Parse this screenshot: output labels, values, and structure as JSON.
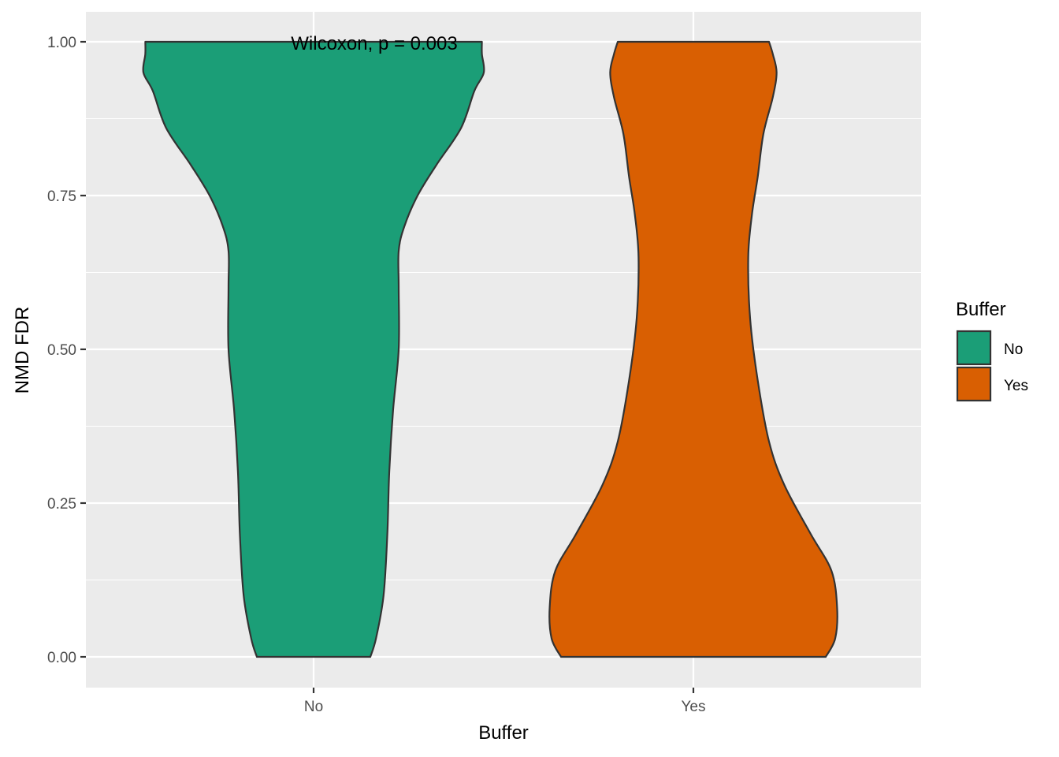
{
  "chart_data": {
    "type": "violin",
    "title": "",
    "xlabel": "Buffer",
    "ylabel": "NMD FDR",
    "ylim": [
      -0.1,
      1.05
    ],
    "yticks": [
      0.0,
      0.25,
      0.5,
      0.75,
      1.0
    ],
    "ytick_labels": [
      "0.00",
      "0.25",
      "0.50",
      "0.75",
      "1.00"
    ],
    "categories": [
      "No",
      "Yes"
    ],
    "grid": true,
    "legend": {
      "title": "Buffer",
      "position": "right",
      "items": [
        {
          "label": "No",
          "color": "#1b9e77"
        },
        {
          "label": "Yes",
          "color": "#d95f02"
        }
      ]
    },
    "annotation": "Wilcoxon, p = 0.003",
    "series": [
      {
        "category": "No",
        "color": "#1b9e77",
        "density_profile": [
          {
            "y": 0.0,
            "w": 0.3
          },
          {
            "y": 0.03,
            "w": 0.33
          },
          {
            "y": 0.1,
            "w": 0.37
          },
          {
            "y": 0.2,
            "w": 0.39
          },
          {
            "y": 0.3,
            "w": 0.4
          },
          {
            "y": 0.4,
            "w": 0.42
          },
          {
            "y": 0.5,
            "w": 0.45
          },
          {
            "y": 0.6,
            "w": 0.45
          },
          {
            "y": 0.66,
            "w": 0.45
          },
          {
            "y": 0.7,
            "w": 0.48
          },
          {
            "y": 0.75,
            "w": 0.55
          },
          {
            "y": 0.8,
            "w": 0.65
          },
          {
            "y": 0.86,
            "w": 0.78
          },
          {
            "y": 0.92,
            "w": 0.85
          },
          {
            "y": 0.95,
            "w": 0.9
          },
          {
            "y": 0.98,
            "w": 0.89
          },
          {
            "y": 1.0,
            "w": 0.89
          }
        ]
      },
      {
        "category": "Yes",
        "color": "#d95f02",
        "density_profile": [
          {
            "y": 0.0,
            "w": 0.7
          },
          {
            "y": 0.03,
            "w": 0.75
          },
          {
            "y": 0.08,
            "w": 0.76
          },
          {
            "y": 0.14,
            "w": 0.73
          },
          {
            "y": 0.2,
            "w": 0.62
          },
          {
            "y": 0.28,
            "w": 0.48
          },
          {
            "y": 0.35,
            "w": 0.4
          },
          {
            "y": 0.45,
            "w": 0.34
          },
          {
            "y": 0.55,
            "w": 0.3
          },
          {
            "y": 0.65,
            "w": 0.29
          },
          {
            "y": 0.72,
            "w": 0.31
          },
          {
            "y": 0.78,
            "w": 0.34
          },
          {
            "y": 0.85,
            "w": 0.37
          },
          {
            "y": 0.91,
            "w": 0.42
          },
          {
            "y": 0.95,
            "w": 0.44
          },
          {
            "y": 0.98,
            "w": 0.42
          },
          {
            "y": 1.0,
            "w": 0.4
          }
        ]
      }
    ]
  }
}
